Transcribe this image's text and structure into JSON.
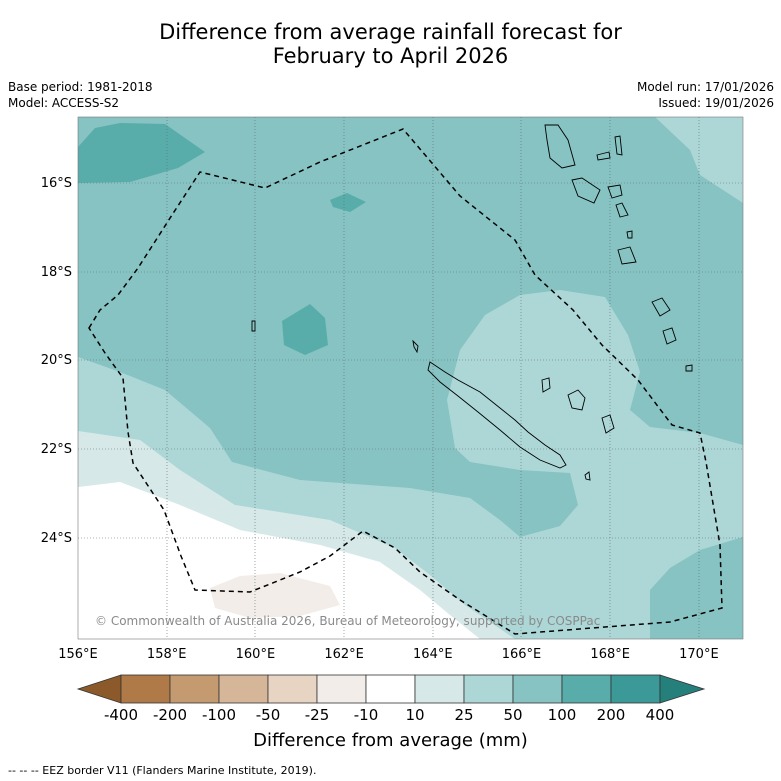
{
  "title": {
    "line1": "Difference from average rainfall forecast for",
    "line2": "February to April 2026"
  },
  "meta": {
    "base_period": "Base period: 1981-2018",
    "model": "Model: ACCESS-S2",
    "model_run": "Model run: 17/01/2026",
    "issued": "Issued: 19/01/2026"
  },
  "map": {
    "lat_labels": [
      "16°S",
      "18°S",
      "20°S",
      "22°S",
      "24°S"
    ],
    "lon_labels": [
      "156°E",
      "158°E",
      "160°E",
      "162°E",
      "164°E",
      "166°E",
      "168°E",
      "170°E"
    ],
    "copyright": "© Commonwealth of Australia 2026, Bureau of Meteorology, supported by COSPPac",
    "eez_note": "--  --  -- EEZ border V11 (Flanders Marine Institute, 2019)."
  },
  "legend": {
    "label": "Difference from average (mm)",
    "ticks": [
      "-400",
      "-200",
      "-100",
      "-50",
      "-25",
      "-10",
      "10",
      "25",
      "50",
      "100",
      "200",
      "400"
    ],
    "colors": [
      "#8c5a2a",
      "#b07a48",
      "#c49a70",
      "#d6b698",
      "#e8d4c2",
      "#f3ede9",
      "#ffffff",
      "#d6e9e8",
      "#add7d7",
      "#86c3c2",
      "#58adab",
      "#3b9a98",
      "#257f7b"
    ]
  }
}
